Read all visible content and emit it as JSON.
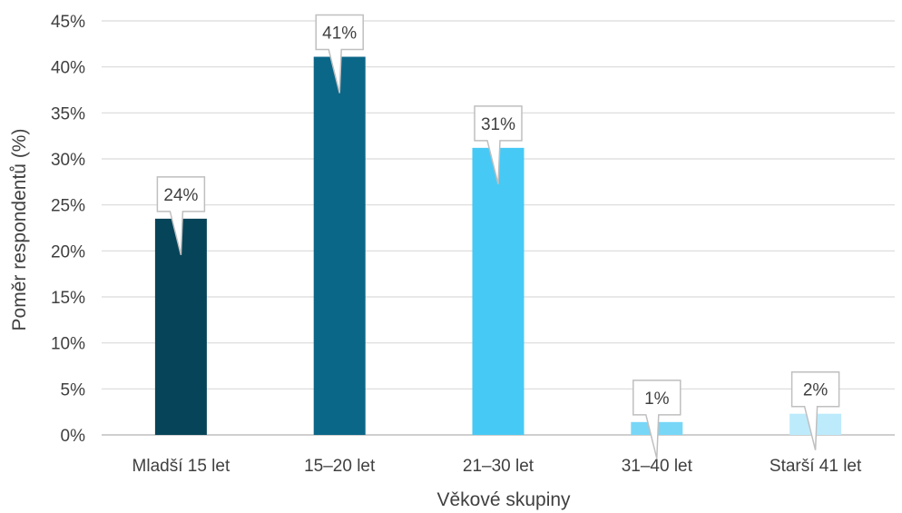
{
  "chart_data": {
    "type": "bar",
    "categories": [
      "Mladší 15 let",
      "15–20 let",
      "21–30 let",
      "31–40 let",
      "Starší 41 let"
    ],
    "values": [
      23.5,
      41.1,
      31.2,
      1.4,
      2.3
    ],
    "data_labels": [
      "24%",
      "41%",
      "31%",
      "1%",
      "2%"
    ],
    "bar_colors": [
      "#064459",
      "#0b6788",
      "#47c9f5",
      "#78d7f7",
      "#bdebfb"
    ],
    "title": "",
    "xlabel": "Věkové skupiny",
    "ylabel": "Poměr respondentů (%)",
    "ylim": [
      0,
      45
    ],
    "yticks": [
      0,
      5,
      10,
      15,
      20,
      25,
      30,
      35,
      40,
      45
    ],
    "ytick_labels": [
      "0%",
      "5%",
      "10%",
      "15%",
      "20%",
      "25%",
      "30%",
      "35%",
      "40%",
      "45%"
    ],
    "grid": true,
    "legend": "none"
  }
}
